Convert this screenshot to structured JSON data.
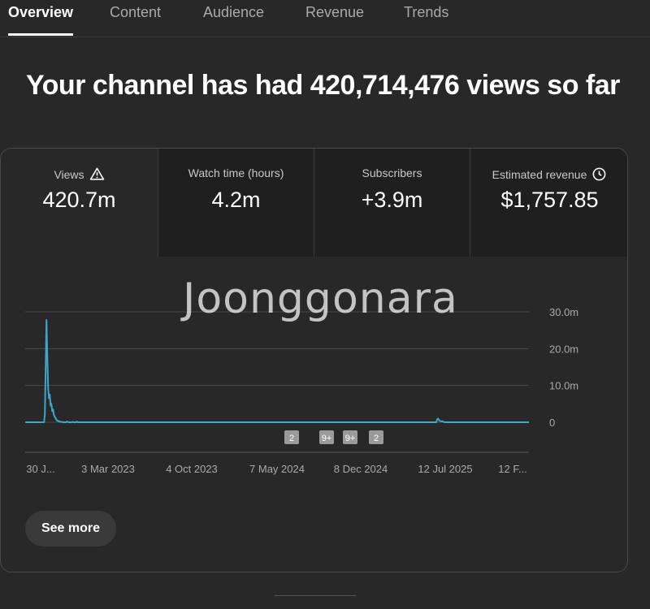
{
  "tabs": [
    {
      "label": "Overview",
      "active": true
    },
    {
      "label": "Content",
      "active": false
    },
    {
      "label": "Audience",
      "active": false
    },
    {
      "label": "Revenue",
      "active": false
    },
    {
      "label": "Trends",
      "active": false
    }
  ],
  "headline": "Your channel has had 420,714,476 views so far",
  "metrics": [
    {
      "label": "Views",
      "value": "420.7m",
      "icon": "warning-icon"
    },
    {
      "label": "Watch time (hours)",
      "value": "4.2m"
    },
    {
      "label": "Subscribers",
      "value": "+3.9m"
    },
    {
      "label": "Estimated revenue",
      "value": "$1,757.85",
      "icon": "clock-icon"
    }
  ],
  "watermark": "Joonggonara",
  "see_more_label": "See more",
  "colors": {
    "line": "#3ea6c9",
    "background": "#282828"
  },
  "chart_data": {
    "type": "line",
    "title": "",
    "xlabel": "",
    "ylabel": "",
    "ylim": [
      0,
      30000000
    ],
    "y_ticks": [
      "30.0m",
      "20.0m",
      "10.0m",
      "0"
    ],
    "x_tick_labels": [
      "30 J...",
      "3 Mar 2023",
      "4 Oct 2023",
      "7 May 2024",
      "8 Dec 2024",
      "12 Jul 2025",
      "12 F..."
    ],
    "series": [
      {
        "values": [
          0,
          0,
          0,
          0,
          0,
          0,
          0,
          0,
          0,
          0,
          0,
          0,
          0,
          0,
          0,
          0,
          0,
          0,
          0,
          0,
          0,
          0,
          0,
          0,
          2000000,
          14000000,
          27800000,
          18000000,
          9500000,
          6500000,
          7500000,
          4500000,
          5000000,
          3000000,
          3500000,
          2000000,
          1500000,
          1200000,
          700000,
          500000,
          300000,
          300000,
          200000,
          100000,
          100000,
          100000,
          0,
          0,
          0,
          0,
          0,
          200000,
          100000,
          0,
          0,
          0,
          0,
          0,
          100000,
          0,
          0,
          0,
          0,
          200000,
          0,
          0,
          0,
          0,
          0,
          0,
          0,
          0,
          0,
          0,
          0,
          0,
          0,
          0,
          0,
          0,
          0,
          0,
          0,
          0,
          0,
          0,
          0,
          0,
          0,
          0,
          0,
          0,
          0,
          0,
          0,
          0,
          0,
          0,
          0,
          0,
          0,
          0,
          0,
          0,
          0,
          0,
          0,
          0,
          0,
          0,
          0,
          0,
          0,
          0,
          0,
          0,
          0,
          0,
          0,
          0,
          0,
          0,
          0,
          0,
          0,
          0,
          0,
          0,
          0,
          0,
          0,
          0,
          0,
          0,
          0,
          0,
          0,
          0,
          0,
          0,
          0,
          0,
          0,
          0,
          0,
          0,
          0,
          0,
          0,
          0,
          0,
          0,
          0,
          0,
          0,
          0,
          0,
          0,
          0,
          0,
          0,
          0,
          0,
          0,
          0,
          0,
          0,
          0,
          0,
          0,
          0,
          0,
          0,
          0,
          0,
          0,
          0,
          0,
          0,
          0,
          0,
          0,
          0,
          0,
          0,
          0,
          0,
          0,
          0,
          0,
          0,
          0,
          0,
          0,
          0,
          0,
          0,
          0,
          0,
          0,
          0,
          0,
          0,
          0,
          0,
          0,
          0,
          0,
          0,
          0,
          0,
          0,
          0,
          0,
          0,
          0,
          0,
          0,
          0,
          0,
          0,
          0,
          0,
          0,
          0,
          0,
          0,
          0,
          0,
          0,
          0,
          0,
          0,
          0,
          0,
          0,
          0,
          0,
          0,
          0,
          0,
          0,
          0,
          0,
          0,
          0,
          0,
          0,
          0,
          0,
          0,
          0,
          0,
          0,
          0,
          0,
          0,
          0,
          0,
          0,
          0,
          0,
          0,
          0,
          0,
          0,
          0,
          0,
          0,
          0,
          0,
          0,
          0,
          0,
          0,
          0,
          0,
          0,
          0,
          0,
          0,
          0,
          0,
          0,
          0,
          0,
          0,
          0,
          0,
          0,
          0,
          0,
          0,
          0,
          0,
          0,
          0,
          0,
          0,
          0,
          0,
          0,
          0,
          0,
          0,
          0,
          0,
          0,
          0,
          0,
          0,
          0,
          0,
          0,
          0,
          0,
          0,
          0,
          0,
          0,
          0,
          0,
          0,
          0,
          0,
          0,
          0,
          0,
          0,
          0,
          0,
          0,
          0,
          0,
          0,
          0,
          0,
          0,
          0,
          0,
          0,
          0,
          0,
          0,
          0,
          0,
          0,
          0,
          0,
          0,
          0,
          0,
          0,
          0,
          0,
          0,
          0,
          0,
          0,
          0,
          0,
          0,
          0,
          0,
          0,
          0,
          0,
          0,
          0,
          0,
          0,
          0,
          0,
          0,
          0,
          0,
          0,
          0,
          0,
          0,
          0,
          0,
          0,
          0,
          0,
          0,
          0,
          0,
          0,
          0,
          0,
          0,
          0,
          0,
          0,
          0,
          0,
          0,
          0,
          0,
          0,
          0,
          0,
          0,
          0,
          0,
          0,
          0,
          0,
          0,
          0,
          0,
          0,
          0,
          0,
          0,
          0,
          0,
          0,
          0,
          0,
          0,
          0,
          0,
          0,
          0,
          0,
          0,
          0,
          0,
          0,
          0,
          0,
          0,
          0,
          0,
          0,
          0,
          0,
          0,
          0,
          0,
          0,
          0,
          0,
          0,
          0,
          0,
          0,
          0,
          0,
          0,
          0,
          0,
          0,
          0,
          0,
          0,
          0,
          0,
          0,
          0,
          0,
          0,
          0,
          0,
          0,
          0,
          0,
          0,
          0,
          0,
          0,
          0,
          0,
          0,
          0,
          0,
          0,
          0,
          0,
          0,
          0,
          0,
          0,
          0,
          0,
          0,
          0,
          0,
          0,
          0,
          0,
          0,
          0,
          0,
          0,
          0,
          0,
          0,
          0,
          0,
          0,
          800000,
          1000000,
          700000,
          400000,
          300000,
          200000,
          300000,
          200000,
          100000,
          0,
          0,
          0,
          0,
          0,
          0,
          0,
          0,
          0,
          0,
          0,
          0,
          0,
          0,
          0,
          0,
          0,
          0,
          0,
          0,
          0,
          0,
          0,
          0,
          0,
          0,
          0,
          0,
          0,
          0,
          0,
          0,
          0,
          0,
          0,
          0,
          0,
          0,
          0,
          0,
          0,
          0,
          0,
          0,
          0,
          0,
          0,
          0,
          0,
          0,
          0,
          0,
          0,
          0,
          0,
          0,
          0,
          0,
          0,
          0,
          0,
          0,
          0,
          0,
          0,
          0,
          0,
          0,
          0,
          0,
          0,
          0,
          0,
          0,
          0,
          0,
          0,
          0,
          0,
          0,
          0,
          0,
          0,
          0,
          0,
          0,
          0,
          0,
          0,
          0,
          0,
          0,
          0,
          0,
          0,
          0,
          0,
          0,
          0,
          0,
          0,
          0,
          0,
          0
        ]
      }
    ],
    "markers": [
      "2",
      "9+",
      "9+",
      "2"
    ],
    "grid": true
  }
}
